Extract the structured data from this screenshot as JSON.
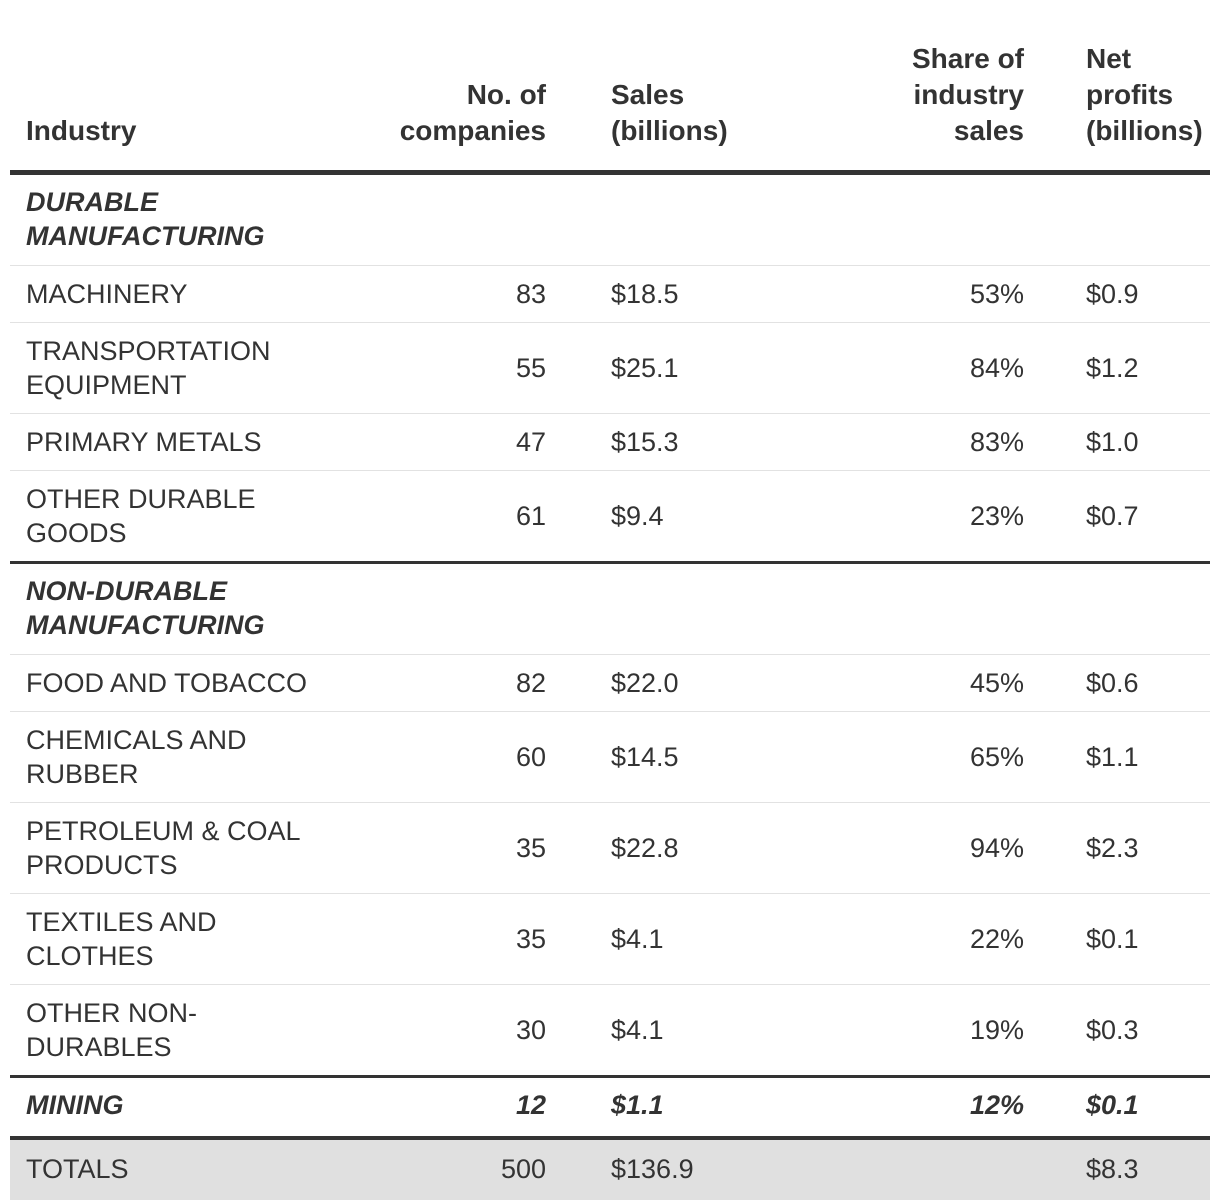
{
  "headers": {
    "industry": "Industry",
    "companies_1": "No. of",
    "companies_2": "companies",
    "sales_1": "Sales",
    "sales_2": "(billions)",
    "share_1": "Share of",
    "share_2": "industry",
    "share_3": "sales",
    "profits_1": "Net profits",
    "profits_2": "(billions)"
  },
  "durable": {
    "title_1": "DURABLE",
    "title_2": "MANUFACTURING",
    "rows": [
      {
        "name_1": "MACHINERY",
        "name_2": "",
        "companies": "83",
        "sales": "$18.5",
        "share": "53%",
        "profits": "$0.9"
      },
      {
        "name_1": "TRANSPORTATION",
        "name_2": "EQUIPMENT",
        "companies": "55",
        "sales": "$25.1",
        "share": "84%",
        "profits": "$1.2"
      },
      {
        "name_1": "PRIMARY METALS",
        "name_2": "",
        "companies": "47",
        "sales": "$15.3",
        "share": "83%",
        "profits": "$1.0"
      },
      {
        "name_1": "OTHER DURABLE",
        "name_2": "GOODS",
        "companies": "61",
        "sales": "$9.4",
        "share": "23%",
        "profits": "$0.7"
      }
    ]
  },
  "nondurable": {
    "title_1": "NON-DURABLE",
    "title_2": "MANUFACTURING",
    "rows": [
      {
        "name_1": "FOOD AND TOBACCO",
        "name_2": "",
        "companies": "82",
        "sales": "$22.0",
        "share": "45%",
        "profits": "$0.6"
      },
      {
        "name_1": "CHEMICALS AND",
        "name_2": "RUBBER",
        "companies": "60",
        "sales": "$14.5",
        "share": "65%",
        "profits": "$1.1"
      },
      {
        "name_1": "PETROLEUM & COAL",
        "name_2": "PRODUCTS",
        "companies": "35",
        "sales": "$22.8",
        "share": "94%",
        "profits": "$2.3"
      },
      {
        "name_1": "TEXTILES AND",
        "name_2": "CLOTHES",
        "companies": "35",
        "sales": "$4.1",
        "share": "22%",
        "profits": "$0.1"
      },
      {
        "name_1": "OTHER NON-DURABLES",
        "name_2": "",
        "companies": "30",
        "sales": "$4.1",
        "share": "19%",
        "profits": "$0.3"
      }
    ]
  },
  "mining": {
    "name": "MINING",
    "companies": "12",
    "sales": "$1.1",
    "share": "12%",
    "profits": "$0.1"
  },
  "totals": {
    "name": "TOTALS",
    "companies": "500",
    "sales": "$136.9",
    "share": "",
    "profits": "$8.3"
  }
}
